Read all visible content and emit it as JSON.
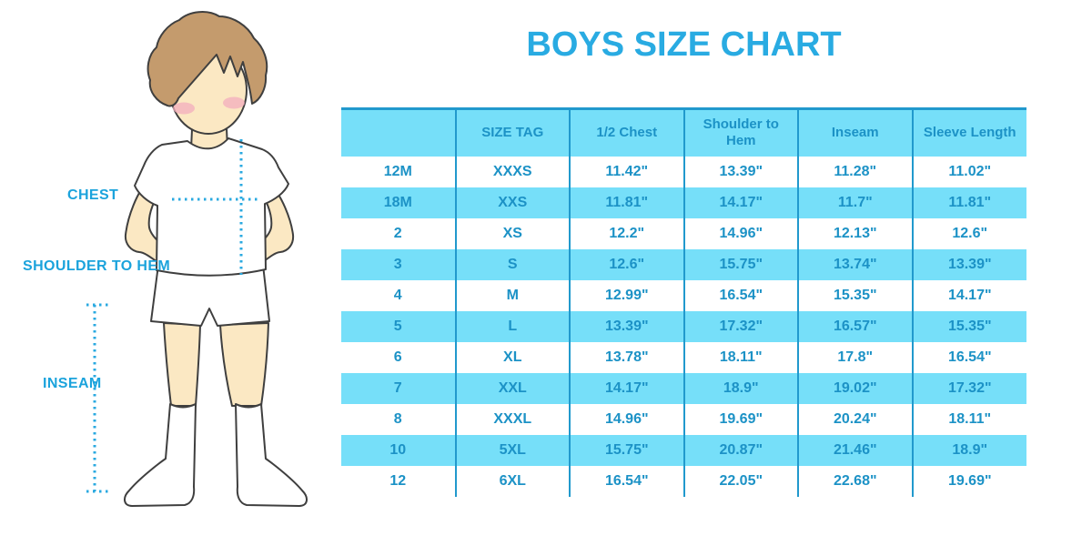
{
  "title": "BOYS SIZE CHART",
  "figure": {
    "description": "cartoon boy in white t-shirt, shorts and knee socks with dotted measurement guides",
    "labels": {
      "chest": "CHEST",
      "shoulder_to_hem": "SHOULDER TO HEM",
      "inseam": "INSEAM"
    }
  },
  "colors": {
    "title_blue": "#29ABE2",
    "table_text_blue": "#1C92C6",
    "row_fill_blue": "#76DFF9",
    "grid_line_blue": "#2199CD",
    "label_blue": "#1BA3DC",
    "dotted_line_blue": "#2AA9E0",
    "skin": "#FBE8C3",
    "hair": "#C49B6D",
    "blush": "#F3AEBE"
  },
  "chart_data": {
    "type": "table",
    "title": "BOYS SIZE CHART",
    "columns": [
      "",
      "SIZE TAG",
      "1/2 Chest",
      "Shoulder to Hem",
      "Inseam",
      "Sleeve Length"
    ],
    "rows": [
      [
        "12M",
        "XXXS",
        "11.42\"",
        "13.39\"",
        "11.28\"",
        "11.02\""
      ],
      [
        "18M",
        "XXS",
        "11.81\"",
        "14.17\"",
        "11.7\"",
        "11.81\""
      ],
      [
        "2",
        "XS",
        "12.2\"",
        "14.96\"",
        "12.13\"",
        "12.6\""
      ],
      [
        "3",
        "S",
        "12.6\"",
        "15.75\"",
        "13.74\"",
        "13.39\""
      ],
      [
        "4",
        "M",
        "12.99\"",
        "16.54\"",
        "15.35\"",
        "14.17\""
      ],
      [
        "5",
        "L",
        "13.39\"",
        "17.32\"",
        "16.57\"",
        "15.35\""
      ],
      [
        "6",
        "XL",
        "13.78\"",
        "18.11\"",
        "17.8\"",
        "16.54\""
      ],
      [
        "7",
        "XXL",
        "14.17\"",
        "18.9\"",
        "19.02\"",
        "17.32\""
      ],
      [
        "8",
        "XXXL",
        "14.96\"",
        "19.69\"",
        "20.24\"",
        "18.11\""
      ],
      [
        "10",
        "5XL",
        "15.75\"",
        "20.87\"",
        "21.46\"",
        "18.9\""
      ],
      [
        "12",
        "6XL",
        "16.54\"",
        "22.05\"",
        "22.68\"",
        "19.69\""
      ]
    ],
    "units": "inches",
    "row_striping": "white / light-cyan alternating, grid lines vertical only"
  }
}
